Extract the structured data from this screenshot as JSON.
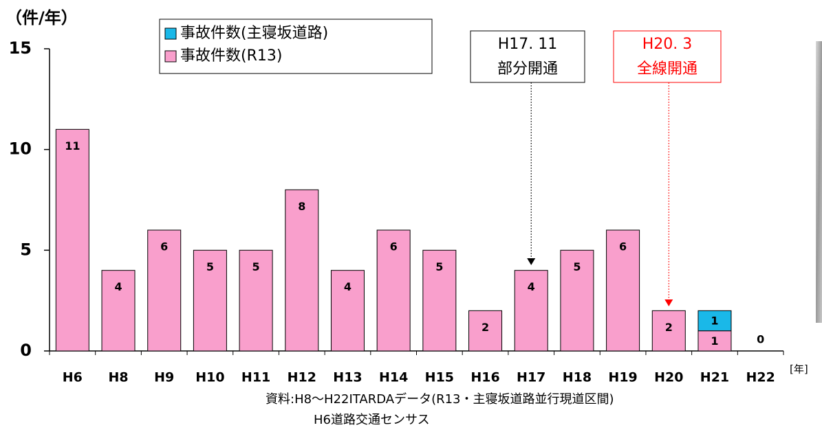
{
  "chart_data": {
    "type": "stacked-bar",
    "y_unit": "（件/年）",
    "x_unit": "[年]",
    "categories": [
      "H6",
      "H8",
      "H9",
      "H10",
      "H11",
      "H12",
      "H13",
      "H14",
      "H15",
      "H16",
      "H17",
      "H18",
      "H19",
      "H20",
      "H21",
      "H22"
    ],
    "series": [
      {
        "name": "事故件数(主寝坂道路)",
        "color": "#1ab8e8",
        "values": [
          null,
          null,
          null,
          null,
          null,
          null,
          null,
          null,
          null,
          null,
          null,
          null,
          null,
          null,
          1,
          null
        ]
      },
      {
        "name": "事故件数(R13)",
        "color": "#f99fcc",
        "values": [
          11,
          4,
          6,
          5,
          5,
          8,
          4,
          6,
          5,
          2,
          4,
          5,
          6,
          2,
          1,
          0
        ]
      }
    ],
    "ylim": [
      0,
      15
    ],
    "yticks": [
      0,
      5,
      10,
      15
    ],
    "annotations": [
      {
        "lines": [
          "H17. 11",
          "部分開通"
        ],
        "color": "#000000"
      },
      {
        "lines": [
          "H20. 3",
          "全線開通"
        ],
        "color": "#ff0000"
      }
    ],
    "source": [
      "資料:H8～H22ITARDAデータ(R13・主寝坂道路並行現道区間)",
      "H6道路交通センサス"
    ]
  }
}
